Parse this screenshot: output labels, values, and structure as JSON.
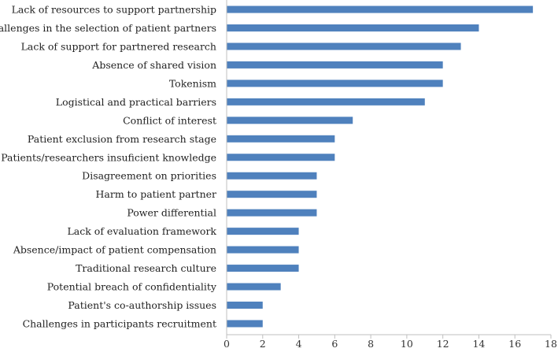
{
  "chart_data": {
    "type": "bar",
    "orientation": "horizontal",
    "title": "",
    "xlabel": "",
    "ylabel": "",
    "categories": [
      "Lack of resources to support partnership",
      "Challenges in the selection of patient partners",
      "Lack of support for partnered research",
      "Absence of shared vision",
      "Tokenism",
      "Logistical and practical barriers",
      "Conflict of interest",
      "Patient exclusion from research stage",
      "Patients/researchers insuficient knowledge",
      "Disagreement on priorities",
      "Harm to patient partner",
      "Power differential",
      "Lack of evaluation framework",
      "Absence/impact of patient compensation",
      "Traditional research culture",
      "Potential breach of confidentiality",
      "Patient's co-authorship issues",
      "Challenges in participants recruitment"
    ],
    "values": [
      17,
      14,
      13,
      12,
      12,
      11,
      7,
      6,
      6,
      5,
      5,
      5,
      4,
      4,
      4,
      3,
      2,
      2
    ],
    "xlim": [
      0,
      18
    ],
    "xticks": [
      0,
      2,
      4,
      6,
      8,
      10,
      12,
      14,
      16,
      18
    ],
    "grid": false,
    "legend": "none",
    "bar_color": "#4f81bd",
    "axis_color": "#bfbfbf"
  }
}
